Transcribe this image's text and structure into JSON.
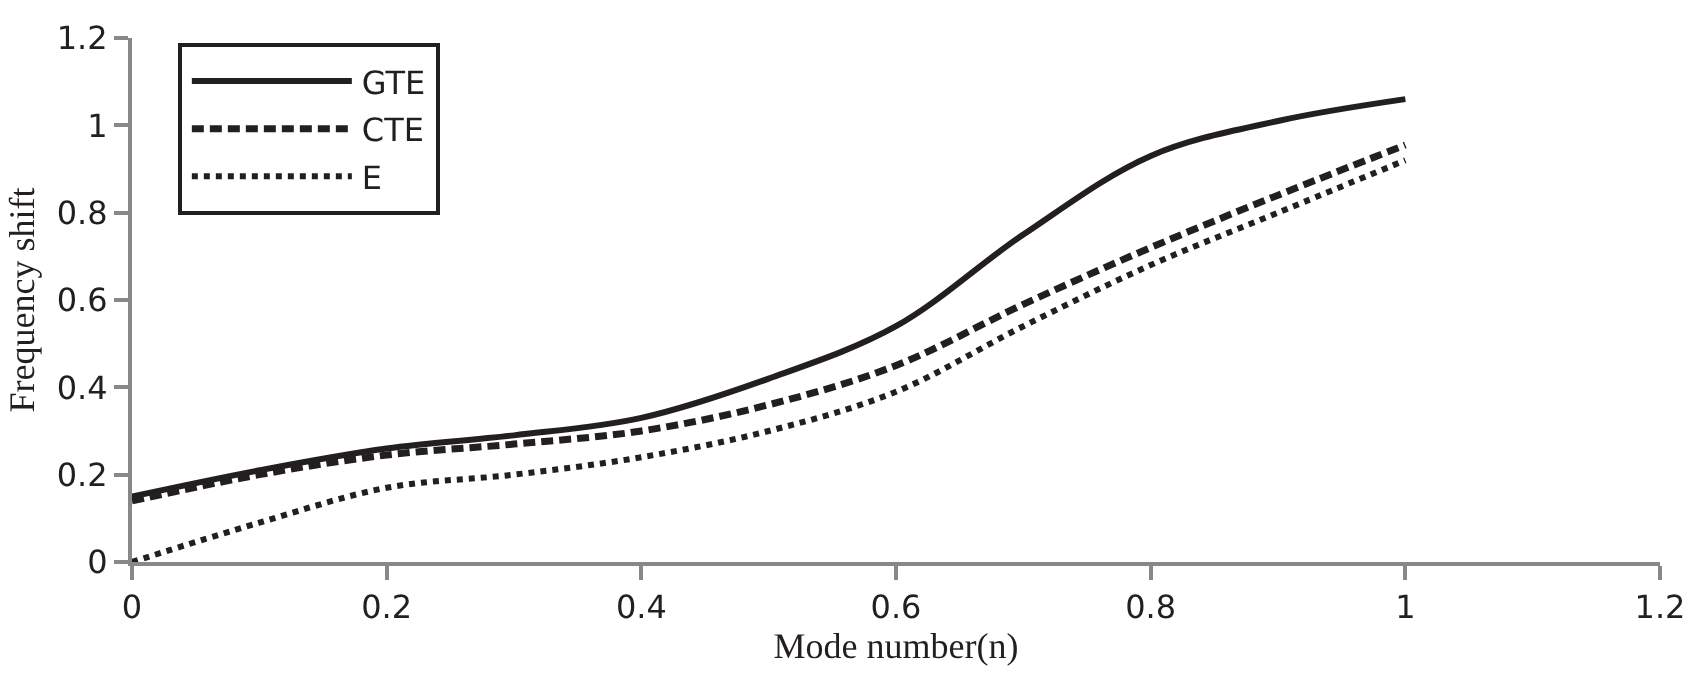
{
  "chart_data": {
    "type": "line",
    "xlabel": "Mode number(n)",
    "ylabel": "Frequency shift",
    "x": [
      0,
      0.1,
      0.2,
      0.3,
      0.4,
      0.5,
      0.6,
      0.7,
      0.8,
      0.9,
      1
    ],
    "series": [
      {
        "name": "GTE",
        "color": "#231f20",
        "line_style": "solid",
        "values": [
          0.15,
          0.21,
          0.26,
          0.29,
          0.33,
          0.42,
          0.54,
          0.75,
          0.93,
          1.01,
          1.06
        ]
      },
      {
        "name": "CTE",
        "color": "#231f20",
        "line_style": "dashed",
        "values": [
          0.14,
          0.2,
          0.245,
          0.27,
          0.3,
          0.36,
          0.45,
          0.59,
          0.72,
          0.84,
          0.955
        ]
      },
      {
        "name": "E",
        "color": "#231f20",
        "line_style": "dotted",
        "values": [
          0,
          0.09,
          0.17,
          0.2,
          0.24,
          0.3,
          0.39,
          0.54,
          0.68,
          0.8,
          0.92
        ]
      }
    ],
    "xlim": [
      0,
      1.2
    ],
    "xticks": [
      0,
      0.2,
      0.4,
      0.6,
      0.8,
      1,
      1.2
    ],
    "ylim": [
      0,
      1.2
    ],
    "yticks": [
      0,
      0.2,
      0.4,
      0.6,
      0.8,
      1,
      1.2
    ],
    "legend": "top left",
    "marker": "none"
  }
}
